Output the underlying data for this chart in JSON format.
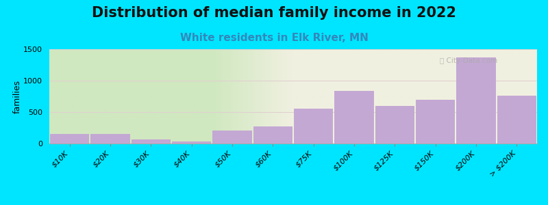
{
  "title": "Distribution of median family income in 2022",
  "subtitle": "White residents in Elk River, MN",
  "ylabel": "families",
  "categories": [
    "$10K",
    "$20K",
    "$30K",
    "$40K",
    "$50K",
    "$60K",
    "$75K",
    "$100K",
    "$125K",
    "$150K",
    "$200K",
    "> $200K"
  ],
  "values": [
    150,
    150,
    65,
    35,
    205,
    270,
    550,
    840,
    600,
    700,
    1370,
    760
  ],
  "bar_color": "#c4a8d4",
  "bar_edge_color": "#c4a8d4",
  "background_fig": "#00e5ff",
  "background_ax_gradient_left": "#d0e8c0",
  "background_ax_gradient_right": "#f0f0e0",
  "grid_color": "#e0d0d0",
  "title_fontsize": 15,
  "subtitle_fontsize": 11,
  "subtitle_color": "#3388bb",
  "ylabel_fontsize": 9,
  "tick_fontsize": 8,
  "ylim": [
    0,
    1500
  ],
  "yticks": [
    0,
    500,
    1000,
    1500
  ],
  "green_split_index": 5.0
}
